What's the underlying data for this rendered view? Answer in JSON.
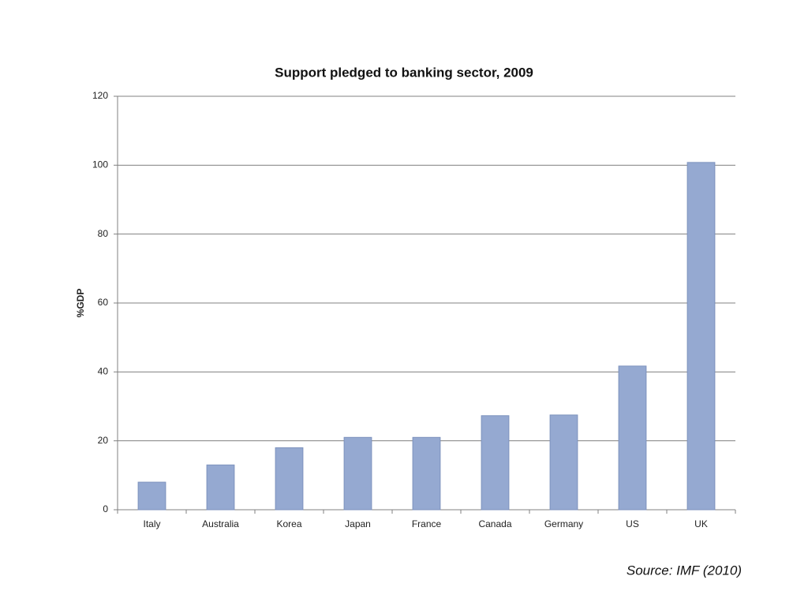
{
  "chart_data": {
    "type": "bar",
    "title": "Support pledged to banking sector, 2009",
    "y_label": "%GDP",
    "categories": [
      "Italy",
      "Australia",
      "Korea",
      "Japan",
      "France",
      "Canada",
      "Germany",
      "US",
      "UK"
    ],
    "values": [
      8,
      13,
      18,
      21,
      21,
      27.3,
      27.5,
      41.7,
      100.8
    ],
    "color": "#95a9d1",
    "ylim": [
      0,
      120
    ],
    "yticks": [
      0,
      20,
      40,
      60,
      80,
      100,
      120
    ],
    "grid": true,
    "annotation": "Source: IMF (2010)"
  }
}
